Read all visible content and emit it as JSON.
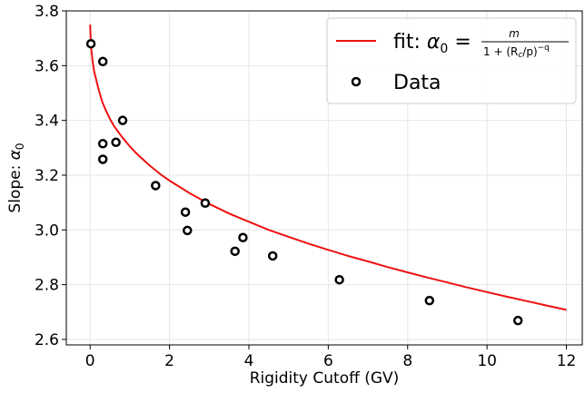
{
  "chart_data": {
    "type": "scatter",
    "title": "",
    "xlabel": "Rigidity Cutoff (GV)",
    "ylabel_prefix": "Slope: ",
    "ylabel_symbol": "α",
    "ylabel_subscript": "0",
    "xlim": [
      -0.6,
      12.4
    ],
    "ylim": [
      2.58,
      3.8
    ],
    "xticks": [
      0,
      2,
      4,
      6,
      8,
      10,
      12
    ],
    "yticks": [
      2.6,
      2.8,
      3.0,
      3.2,
      3.4,
      3.6,
      3.8
    ],
    "xtick_labels": [
      "0",
      "2",
      "4",
      "6",
      "8",
      "10",
      "12"
    ],
    "ytick_labels": [
      "2.6",
      "2.8",
      "3.0",
      "3.2",
      "3.4",
      "3.6",
      "3.8"
    ],
    "grid": true,
    "legend_position": "top-right",
    "series": [
      {
        "kind": "line",
        "color": "#ee1111",
        "legend_prefix": "fit: ",
        "legend_alpha": "α",
        "legend_sub0": "0",
        "legend_eq": " = ",
        "frac_num": "m",
        "frac_den_a": "1 + (R",
        "frac_den_c": "c",
        "frac_den_b": "/p)",
        "frac_den_exp": "−q",
        "x": [
          0.0,
          0.01,
          0.03,
          0.06,
          0.1,
          0.15,
          0.2,
          0.3,
          0.4,
          0.5,
          0.6,
          0.8,
          1.0,
          1.2,
          1.5,
          1.8,
          2.0,
          2.5,
          3.0,
          3.5,
          4.0,
          4.5,
          5.0,
          5.5,
          6.0,
          6.5,
          7.0,
          7.5,
          8.0,
          8.5,
          9.0,
          9.5,
          10.0,
          10.5,
          11.0,
          11.5,
          12.0
        ],
        "y": [
          3.75,
          3.71,
          3.66,
          3.62,
          3.58,
          3.55,
          3.52,
          3.47,
          3.435,
          3.405,
          3.38,
          3.34,
          3.305,
          3.275,
          3.235,
          3.2,
          3.18,
          3.135,
          3.095,
          3.06,
          3.03,
          3.0,
          2.975,
          2.95,
          2.927,
          2.905,
          2.885,
          2.864,
          2.845,
          2.826,
          2.808,
          2.79,
          2.773,
          2.756,
          2.74,
          2.724,
          2.708
        ]
      },
      {
        "kind": "scatter",
        "name": "Data",
        "color": "#000000",
        "x": [
          0.02,
          0.32,
          0.32,
          0.32,
          0.65,
          0.82,
          1.65,
          2.4,
          2.45,
          2.9,
          3.65,
          3.85,
          4.6,
          6.28,
          8.55,
          10.78
        ],
        "y": [
          3.68,
          3.615,
          3.315,
          3.258,
          3.32,
          3.4,
          3.162,
          3.065,
          2.998,
          3.098,
          2.922,
          2.972,
          2.905,
          2.818,
          2.742,
          2.669
        ]
      }
    ]
  }
}
